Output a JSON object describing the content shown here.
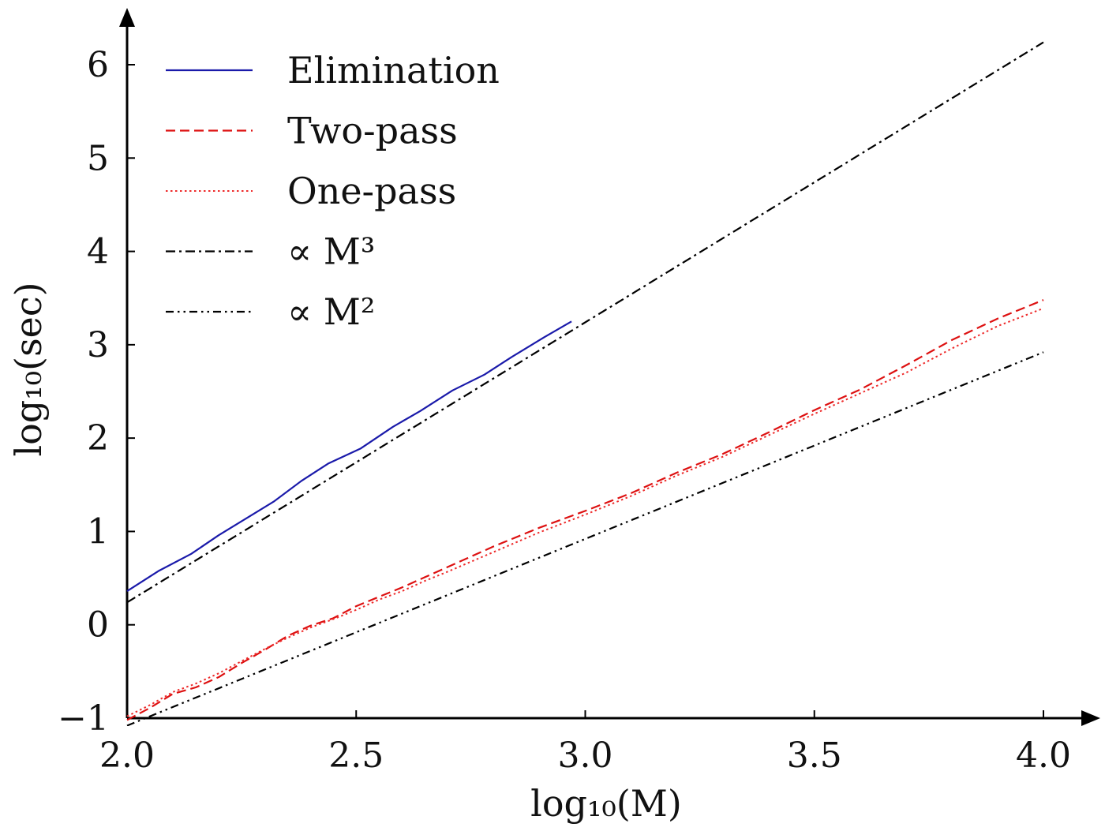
{
  "chart_data": {
    "type": "line",
    "xlabel": "log₁₀(M)",
    "ylabel": "log₁₀(sec)",
    "xlim": [
      2.0,
      4.0
    ],
    "ylim": [
      -1,
      6.5
    ],
    "x_ticks": [
      {
        "value": 2.0,
        "label": "2.0"
      },
      {
        "value": 2.5,
        "label": "2.5"
      },
      {
        "value": 3.0,
        "label": "3.0"
      },
      {
        "value": 3.5,
        "label": "3.5"
      },
      {
        "value": 4.0,
        "label": "4.0"
      }
    ],
    "y_ticks": [
      {
        "value": -1,
        "label": "−1"
      },
      {
        "value": 0,
        "label": "0"
      },
      {
        "value": 1,
        "label": "1"
      },
      {
        "value": 2,
        "label": "2"
      },
      {
        "value": 3,
        "label": "3"
      },
      {
        "value": 4,
        "label": "4"
      },
      {
        "value": 5,
        "label": "5"
      },
      {
        "value": 6,
        "label": "6"
      }
    ],
    "grid": false,
    "legend_position": "top-left",
    "series": [
      {
        "name": "Elimination",
        "color": "#1a1aaa",
        "style": "solid",
        "x": [
          2.0,
          2.07,
          2.14,
          2.2,
          2.26,
          2.32,
          2.38,
          2.44,
          2.51,
          2.58,
          2.64,
          2.71,
          2.78,
          2.84,
          2.91,
          2.97
        ],
        "y": [
          0.36,
          0.58,
          0.76,
          0.96,
          1.14,
          1.32,
          1.54,
          1.73,
          1.89,
          2.12,
          2.29,
          2.51,
          2.68,
          2.87,
          3.08,
          3.25
        ]
      },
      {
        "name": "Two-pass",
        "color": "#dd1111",
        "style": "dashed",
        "x": [
          2.0,
          2.05,
          2.1,
          2.15,
          2.2,
          2.25,
          2.3,
          2.35,
          2.4,
          2.45,
          2.5,
          2.55,
          2.6,
          2.65,
          2.7,
          2.8,
          2.9,
          3.0,
          3.1,
          3.2,
          3.3,
          3.4,
          3.5,
          3.6,
          3.7,
          3.8,
          3.9,
          4.0
        ],
        "y": [
          -1.02,
          -0.89,
          -0.74,
          -0.67,
          -0.56,
          -0.41,
          -0.27,
          -0.12,
          -0.01,
          0.07,
          0.2,
          0.3,
          0.4,
          0.51,
          0.62,
          0.84,
          1.04,
          1.22,
          1.41,
          1.63,
          1.83,
          2.06,
          2.3,
          2.52,
          2.78,
          3.05,
          3.28,
          3.48
        ]
      },
      {
        "name": "One-pass",
        "color": "#ee2a2a",
        "style": "dotted",
        "x": [
          2.0,
          2.05,
          2.1,
          2.15,
          2.2,
          2.25,
          2.3,
          2.35,
          2.4,
          2.45,
          2.5,
          2.55,
          2.6,
          2.65,
          2.7,
          2.8,
          2.9,
          3.0,
          3.1,
          3.2,
          3.3,
          3.4,
          3.5,
          3.6,
          3.7,
          3.8,
          3.9,
          4.0
        ],
        "y": [
          -0.98,
          -0.86,
          -0.72,
          -0.63,
          -0.52,
          -0.39,
          -0.26,
          -0.14,
          -0.03,
          0.06,
          0.16,
          0.27,
          0.36,
          0.47,
          0.57,
          0.78,
          0.99,
          1.18,
          1.38,
          1.6,
          1.8,
          2.03,
          2.26,
          2.48,
          2.7,
          2.96,
          3.2,
          3.39
        ]
      },
      {
        "name": "∝ M³",
        "color": "#000000",
        "style": "dashdot",
        "x": [
          2.0,
          4.0
        ],
        "y": [
          0.24,
          6.24
        ]
      },
      {
        "name": "∝ M²",
        "color": "#000000",
        "style": "dashdotdot",
        "x": [
          2.0,
          4.0
        ],
        "y": [
          -1.08,
          2.92
        ]
      }
    ]
  }
}
